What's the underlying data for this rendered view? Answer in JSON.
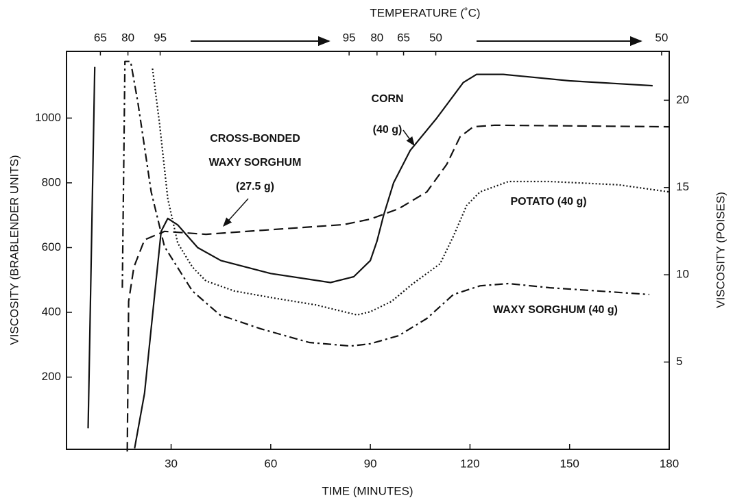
{
  "chart_data": {
    "type": "line",
    "x_label": "TIME (MINUTES)",
    "y_label": "VISCOSITY (BRABLENDER UNITS)",
    "y2_label": "VISCOSITY (POISES)",
    "top_axis": {
      "title": "TEMPERATURE (˚C)",
      "ticks": [
        {
          "value": 8.7,
          "label": "65"
        },
        {
          "value": 17,
          "label": "80"
        },
        {
          "value": 26.7,
          "label": "95"
        },
        {
          "value": 83.6,
          "label": "95"
        },
        {
          "value": 92,
          "label": "80"
        },
        {
          "value": 100,
          "label": "65"
        },
        {
          "value": 109.7,
          "label": "50"
        },
        {
          "value": 177.7,
          "label": "50"
        }
      ]
    },
    "xlim": [
      -1.5,
      180
    ],
    "xticks": [
      30,
      60,
      90,
      120,
      150,
      180
    ],
    "ylim": [
      -23,
      1206
    ],
    "yticks": [
      200,
      400,
      600,
      800,
      1000
    ],
    "y2lim": [
      0,
      22.8
    ],
    "y2ticks": [
      5,
      10,
      15,
      20
    ],
    "series": [
      {
        "color": "#111111",
        "style": "solid",
        "x": [
          5,
          7,
          null,
          19,
          22,
          25,
          27,
          29,
          32,
          38,
          45,
          60,
          78,
          85,
          90,
          92,
          94,
          97,
          102,
          110,
          118,
          122,
          130,
          150,
          175
        ],
        "values": [
          42,
          1158,
          null,
          -20,
          150,
          450,
          650,
          690,
          670,
          600,
          560,
          520,
          492,
          510,
          560,
          620,
          700,
          800,
          900,
          1000,
          1110,
          1135,
          1135,
          1115,
          1100
        ]
      },
      {
        "color": "#111111",
        "style": "dashed",
        "x": [
          16.8,
          17.2,
          18.8,
          22,
          28,
          40.5,
          61,
          82,
          90,
          98.5,
          107,
          113,
          117,
          121,
          127.5,
          180
        ],
        "values": [
          -30,
          434,
          540,
          624,
          650,
          641,
          656,
          671,
          688,
          720,
          772,
          857,
          942,
          973,
          978,
          973
        ]
      },
      {
        "color": "#111111",
        "style": "dashdot",
        "x": [
          15.3,
          16.1,
          17.8,
          20,
          24,
          28,
          36.4,
          44.7,
          57,
          71.6,
          84,
          90,
          98.5,
          107,
          115,
          123,
          131.6,
          144,
          158.5,
          174
        ],
        "values": [
          476,
          1175,
          1175,
          1048,
          772,
          603,
          466,
          392,
          349,
          307,
          296,
          303,
          328,
          381,
          455,
          482,
          489,
          476,
          466,
          455
        ]
      },
      {
        "color": "#111111",
        "style": "dotted",
        "x": [
          24.4,
          26.5,
          29,
          32,
          36.4,
          40.5,
          49,
          61,
          73.6,
          82,
          86,
          90,
          96.4,
          102.6,
          111,
          115,
          119,
          123,
          131.6,
          144,
          164.7,
          180
        ],
        "values": [
          1153,
          984,
          751,
          614,
          540,
          497,
          466,
          444,
          423,
          402,
          392,
          402,
          434,
          487,
          550,
          635,
          730,
          772,
          804,
          804,
          794,
          772
        ]
      }
    ],
    "annotations": [
      "CORN",
      "(40 g)",
      "CROSS-BONDED",
      "WAXY SORGHUM",
      "(27.5 g)",
      "POTATO (40 g)",
      "WAXY SORGHUM (40 g)"
    ]
  }
}
